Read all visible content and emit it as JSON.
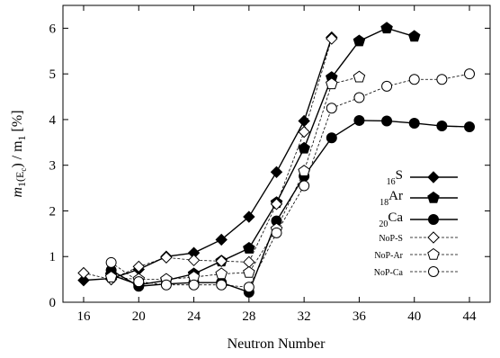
{
  "chart_data": {
    "type": "line",
    "xlabel": "Neutron Number",
    "ylabel_main": "m",
    "ylabel_sub1": "1",
    "ylabel_paren": "(E",
    "ylabel_sub2": "c",
    "ylabel_end": ") / m",
    "ylabel_sub3": "1",
    "ylabel_unit": " [%]",
    "xlim": [
      14.5,
      45.5
    ],
    "ylim": [
      0,
      6.5
    ],
    "xticks": [
      16,
      20,
      24,
      28,
      32,
      36,
      40,
      44
    ],
    "yticks": [
      0,
      1,
      2,
      3,
      4,
      5,
      6
    ],
    "grid": false,
    "legend_position": "middle-right",
    "series": [
      {
        "name_prefix": "16",
        "name": "S",
        "marker": "diamond",
        "filled": true,
        "dashed": false,
        "x": [
          16,
          18,
          20,
          22,
          24,
          26,
          28,
          30,
          32,
          34
        ],
        "y": [
          0.48,
          0.52,
          0.72,
          1.0,
          1.08,
          1.37,
          1.87,
          2.85,
          3.97,
          5.8
        ]
      },
      {
        "name_prefix": "18",
        "name": "Ar",
        "marker": "pentagon",
        "filled": true,
        "dashed": false,
        "x": [
          18,
          20,
          22,
          24,
          26,
          28,
          30,
          32,
          34,
          36,
          38,
          40
        ],
        "y": [
          0.6,
          0.38,
          0.48,
          0.62,
          0.9,
          1.18,
          2.18,
          3.37,
          4.92,
          5.72,
          6.0,
          5.82
        ]
      },
      {
        "name_prefix": "20",
        "name": "Ca",
        "marker": "circle",
        "filled": true,
        "dashed": false,
        "x": [
          18,
          20,
          22,
          24,
          26,
          28,
          30,
          32,
          34,
          36,
          38,
          40,
          42,
          44
        ],
        "y": [
          0.7,
          0.35,
          0.4,
          0.43,
          0.43,
          0.22,
          1.78,
          2.76,
          3.6,
          3.98,
          3.97,
          3.92,
          3.86,
          3.84
        ]
      },
      {
        "name_prefix": "",
        "name": "NoP-S",
        "marker": "diamond",
        "filled": false,
        "dashed": true,
        "x": [
          16,
          18,
          20,
          22,
          24,
          26,
          28,
          30,
          32,
          34
        ],
        "y": [
          0.64,
          0.5,
          0.78,
          0.98,
          0.92,
          0.9,
          0.88,
          2.15,
          3.73,
          5.77
        ]
      },
      {
        "name_prefix": "",
        "name": "NoP-Ar",
        "marker": "pentagon",
        "filled": false,
        "dashed": true,
        "x": [
          18,
          20,
          22,
          24,
          26,
          28,
          30,
          32,
          34,
          36
        ],
        "y": [
          0.55,
          0.5,
          0.5,
          0.55,
          0.62,
          0.65,
          1.6,
          2.87,
          4.78,
          4.93
        ]
      },
      {
        "name_prefix": "",
        "name": "NoP-Ca",
        "marker": "circle",
        "filled": false,
        "dashed": true,
        "x": [
          18,
          20,
          22,
          24,
          26,
          28,
          30,
          32,
          34,
          36,
          38,
          40,
          42,
          44
        ],
        "y": [
          0.87,
          0.45,
          0.38,
          0.38,
          0.38,
          0.33,
          1.52,
          2.55,
          4.25,
          4.48,
          4.73,
          4.88,
          4.88,
          5.0
        ]
      }
    ]
  }
}
